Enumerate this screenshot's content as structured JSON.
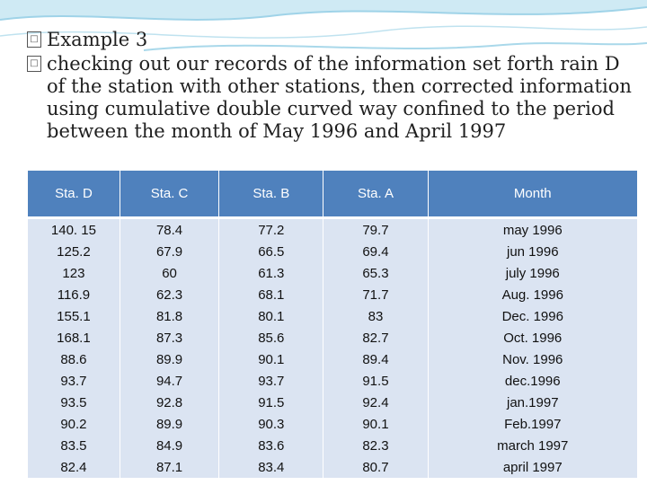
{
  "slide": {
    "title_line": "Example 3",
    "body_lines": [
      "checking out our records of the information set forth rain D",
      "of the station with other stations, then corrected information",
      "using cumulative double curved way confined to the period",
      "between the month of May 1996 and April 1997"
    ],
    "bullet_glyph": "□"
  },
  "table": {
    "headers": [
      "Sta. D",
      "Sta. C",
      "Sta. B",
      "Sta. A",
      "Month"
    ],
    "rows": [
      [
        "140. 15",
        "78.4",
        "77.2",
        "79.7",
        "may 1996"
      ],
      [
        "125.2",
        "67.9",
        "66.5",
        "69.4",
        "jun 1996"
      ],
      [
        "123",
        "60",
        "61.3",
        "65.3",
        "july 1996"
      ],
      [
        "116.9",
        "62.3",
        "68.1",
        "71.7",
        "Aug. 1996"
      ],
      [
        "155.1",
        "81.8",
        "80.1",
        "83",
        "Dec. 1996"
      ],
      [
        "168.1",
        "87.3",
        "85.6",
        "82.7",
        "Oct. 1996"
      ],
      [
        "88.6",
        "89.9",
        "90.1",
        "89.4",
        "Nov. 1996"
      ],
      [
        "93.7",
        "94.7",
        "93.7",
        "91.5",
        "dec.1996"
      ],
      [
        "93.5",
        "92.8",
        "91.5",
        "92.4",
        "jan.1997"
      ],
      [
        "90.2",
        "89.9",
        "90.3",
        "90.1",
        "Feb.1997"
      ],
      [
        "83.5",
        "84.9",
        "83.6",
        "82.3",
        "march 1997"
      ],
      [
        "82.4",
        "87.1",
        "83.4",
        "80.7",
        "april 1997"
      ]
    ]
  },
  "colors": {
    "header_bg": "#4f81bd",
    "row_bg": "#dbe4f2",
    "wave": "#9fd3e8"
  }
}
